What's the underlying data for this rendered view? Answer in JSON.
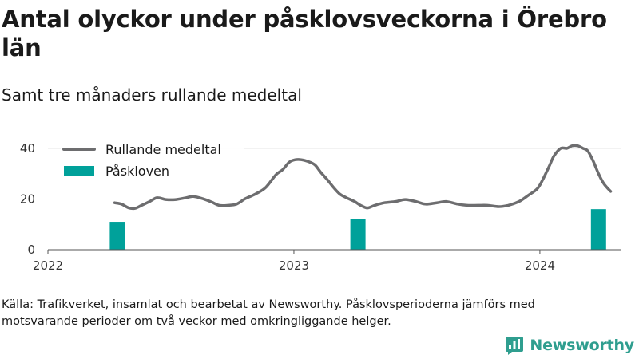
{
  "title": "Antal olyckor under påsklovsveckorna i Örebro län",
  "subtitle": "Samt tre månaders rullande medeltal",
  "source": "Källa: Trafikverket, insamlat och bearbetat av Newsworthy. Påsklovsperioderna jämförs med motsvarande perioder om två veckor med omkringliggande helger.",
  "brand": {
    "name": "Newsworthy",
    "logo_icon": "newsworthy-chart-icon",
    "color": "#2f9e8f"
  },
  "chart_data": {
    "type": "bar",
    "title": "Antal olyckor under påsklovsveckorna i Örebro län",
    "subtitle": "Samt tre månaders rullande medeltal",
    "xlabel": "",
    "ylabel": "",
    "ylim": [
      0,
      45
    ],
    "xlim": [
      "2022-01-01",
      "2024-05-01"
    ],
    "yticks": [
      0,
      20,
      40
    ],
    "xticks": [
      {
        "label": "2022",
        "date": "2022-01-01"
      },
      {
        "label": "2023",
        "date": "2023-01-01"
      },
      {
        "label": "2024",
        "date": "2024-01-01"
      }
    ],
    "grid": true,
    "legend_position": "top-left",
    "series": [
      {
        "name": "Rullande medeltal",
        "type": "line",
        "color": "#6d6d6f",
        "points": [
          [
            "2022-04-10",
            18.5
          ],
          [
            "2022-04-20",
            18
          ],
          [
            "2022-05-01",
            16.5
          ],
          [
            "2022-05-10",
            16.3
          ],
          [
            "2022-05-20",
            17.5
          ],
          [
            "2022-06-01",
            19
          ],
          [
            "2022-06-12",
            20.5
          ],
          [
            "2022-06-25",
            19.8
          ],
          [
            "2022-07-10",
            19.8
          ],
          [
            "2022-07-25",
            20.5
          ],
          [
            "2022-08-05",
            21
          ],
          [
            "2022-08-20",
            20
          ],
          [
            "2022-09-01",
            18.8
          ],
          [
            "2022-09-12",
            17.5
          ],
          [
            "2022-09-25",
            17.5
          ],
          [
            "2022-10-08",
            18
          ],
          [
            "2022-10-20",
            20
          ],
          [
            "2022-11-05",
            22
          ],
          [
            "2022-11-20",
            24.5
          ],
          [
            "2022-12-05",
            29.5
          ],
          [
            "2022-12-15",
            31.5
          ],
          [
            "2022-12-25",
            34.5
          ],
          [
            "2023-01-03",
            35.5
          ],
          [
            "2023-01-12",
            35.5
          ],
          [
            "2023-01-22",
            34.8
          ],
          [
            "2023-02-01",
            33.5
          ],
          [
            "2023-02-10",
            30.5
          ],
          [
            "2023-02-20",
            27.5
          ],
          [
            "2023-03-01",
            24.5
          ],
          [
            "2023-03-10",
            22
          ],
          [
            "2023-03-20",
            20.5
          ],
          [
            "2023-04-01",
            19
          ],
          [
            "2023-04-10",
            17.5
          ],
          [
            "2023-04-20",
            16.5
          ],
          [
            "2023-05-01",
            17.5
          ],
          [
            "2023-05-15",
            18.5
          ],
          [
            "2023-06-01",
            19
          ],
          [
            "2023-06-15",
            19.8
          ],
          [
            "2023-07-01",
            19
          ],
          [
            "2023-07-15",
            18
          ],
          [
            "2023-08-01",
            18.5
          ],
          [
            "2023-08-15",
            19
          ],
          [
            "2023-09-01",
            18
          ],
          [
            "2023-09-15",
            17.5
          ],
          [
            "2023-10-01",
            17.5
          ],
          [
            "2023-10-15",
            17.5
          ],
          [
            "2023-11-01",
            17
          ],
          [
            "2023-11-15",
            17.5
          ],
          [
            "2023-12-01",
            19
          ],
          [
            "2023-12-15",
            21.5
          ],
          [
            "2023-12-28",
            24
          ],
          [
            "2024-01-05",
            27.5
          ],
          [
            "2024-01-15",
            33
          ],
          [
            "2024-01-22",
            37
          ],
          [
            "2024-02-01",
            40
          ],
          [
            "2024-02-10",
            40
          ],
          [
            "2024-02-18",
            41
          ],
          [
            "2024-02-26",
            41
          ],
          [
            "2024-03-05",
            40
          ],
          [
            "2024-03-12",
            39
          ],
          [
            "2024-03-20",
            35
          ],
          [
            "2024-03-28",
            30
          ],
          [
            "2024-04-05",
            26
          ],
          [
            "2024-04-15",
            23
          ]
        ]
      },
      {
        "name": "Påskloven",
        "type": "bar",
        "color": "#00a19a",
        "points": [
          [
            "2022-04-14",
            11
          ],
          [
            "2023-04-06",
            12
          ],
          [
            "2024-03-28",
            16
          ]
        ]
      }
    ]
  }
}
